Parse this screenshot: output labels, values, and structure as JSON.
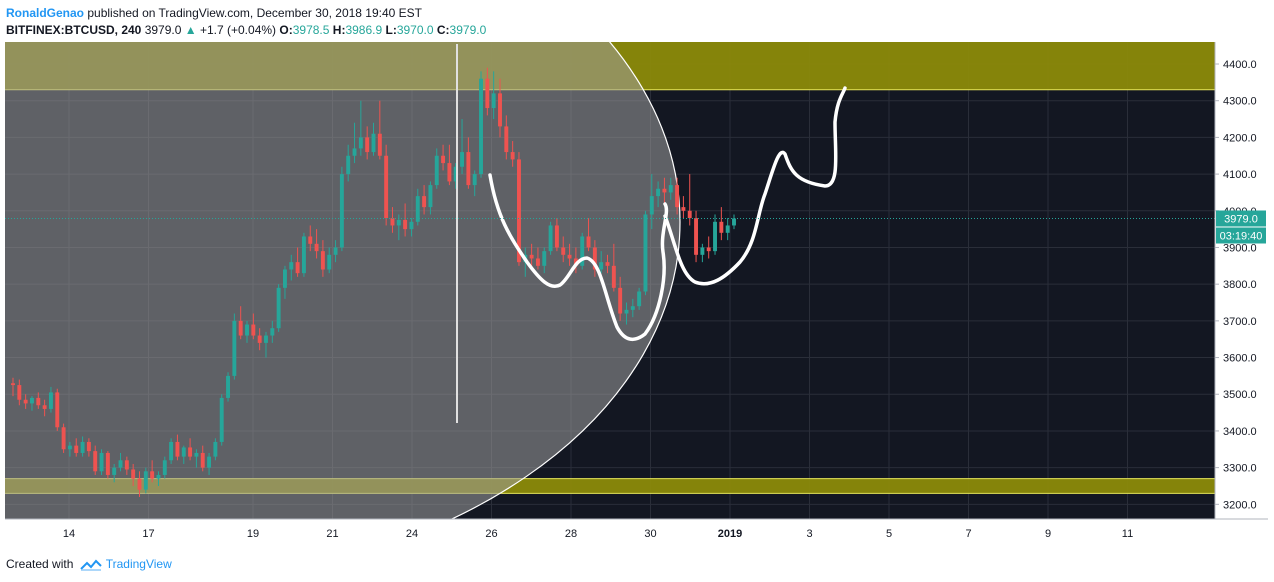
{
  "header": {
    "author": "RonaldGenao",
    "published": "published on TradingView.com, December 30, 2018 19:40 EST",
    "symbol": "BITFINEX:BTCUSD, 240",
    "last": "3979.0",
    "change": "+1.7 (+0.04%)",
    "o_label": "O:",
    "o_value": "3978.5",
    "h_label": "H:",
    "h_value": "3986.9",
    "l_label": "L:",
    "l_value": "3970.0",
    "c_label": "C:",
    "c_value": "3979.0"
  },
  "footer": {
    "created": "Created with",
    "brand": "TradingView"
  },
  "colors": {
    "background": "#131722",
    "up": "#26a69a",
    "down": "#ef5350",
    "zone": "#8b8a0a",
    "zone_border": "#e6e65a",
    "overlay": "#9e9e9e",
    "drawing": "#ffffff",
    "price_line": "#26a69a"
  },
  "chart_data": {
    "type": "candlestick",
    "y_ticks": [
      "4400.0",
      "4300.0",
      "4200.0",
      "4100.0",
      "4000.0",
      "3900.0",
      "3800.0",
      "3700.0",
      "3600.0",
      "3500.0",
      "3400.0",
      "3300.0",
      "3200.0"
    ],
    "ylim": [
      3160,
      4460
    ],
    "x_ticks": [
      "14",
      "17",
      "19",
      "21",
      "24",
      "26",
      "28",
      "30",
      "2019",
      "3",
      "5",
      "7",
      "9",
      "11"
    ],
    "last_price_label": "3979.0",
    "countdown_label": "03:19:40",
    "resistance_zone": [
      4330,
      4460
    ],
    "support_zone": [
      3230,
      3270
    ],
    "candles": [
      {
        "o": 3530,
        "h": 3545,
        "l": 3495,
        "c": 3525
      },
      {
        "o": 3525,
        "h": 3540,
        "l": 3470,
        "c": 3485
      },
      {
        "o": 3485,
        "h": 3500,
        "l": 3460,
        "c": 3475
      },
      {
        "o": 3475,
        "h": 3495,
        "l": 3455,
        "c": 3490
      },
      {
        "o": 3490,
        "h": 3505,
        "l": 3460,
        "c": 3470
      },
      {
        "o": 3470,
        "h": 3485,
        "l": 3440,
        "c": 3460
      },
      {
        "o": 3460,
        "h": 3520,
        "l": 3450,
        "c": 3505
      },
      {
        "o": 3505,
        "h": 3515,
        "l": 3400,
        "c": 3410
      },
      {
        "o": 3410,
        "h": 3420,
        "l": 3340,
        "c": 3350
      },
      {
        "o": 3350,
        "h": 3370,
        "l": 3330,
        "c": 3360
      },
      {
        "o": 3360,
        "h": 3380,
        "l": 3330,
        "c": 3340
      },
      {
        "o": 3340,
        "h": 3385,
        "l": 3330,
        "c": 3370
      },
      {
        "o": 3370,
        "h": 3380,
        "l": 3330,
        "c": 3345
      },
      {
        "o": 3345,
        "h": 3360,
        "l": 3280,
        "c": 3290
      },
      {
        "o": 3290,
        "h": 3350,
        "l": 3280,
        "c": 3340
      },
      {
        "o": 3340,
        "h": 3345,
        "l": 3270,
        "c": 3280
      },
      {
        "o": 3280,
        "h": 3310,
        "l": 3260,
        "c": 3300
      },
      {
        "o": 3300,
        "h": 3340,
        "l": 3290,
        "c": 3320
      },
      {
        "o": 3320,
        "h": 3330,
        "l": 3280,
        "c": 3295
      },
      {
        "o": 3295,
        "h": 3310,
        "l": 3250,
        "c": 3270
      },
      {
        "o": 3270,
        "h": 3290,
        "l": 3220,
        "c": 3240
      },
      {
        "o": 3240,
        "h": 3300,
        "l": 3230,
        "c": 3290
      },
      {
        "o": 3290,
        "h": 3320,
        "l": 3260,
        "c": 3270
      },
      {
        "o": 3270,
        "h": 3290,
        "l": 3250,
        "c": 3280
      },
      {
        "o": 3280,
        "h": 3330,
        "l": 3270,
        "c": 3320
      },
      {
        "o": 3320,
        "h": 3380,
        "l": 3310,
        "c": 3370
      },
      {
        "o": 3370,
        "h": 3390,
        "l": 3320,
        "c": 3330
      },
      {
        "o": 3330,
        "h": 3360,
        "l": 3310,
        "c": 3355
      },
      {
        "o": 3355,
        "h": 3380,
        "l": 3320,
        "c": 3330
      },
      {
        "o": 3330,
        "h": 3350,
        "l": 3300,
        "c": 3340
      },
      {
        "o": 3340,
        "h": 3360,
        "l": 3290,
        "c": 3300
      },
      {
        "o": 3300,
        "h": 3340,
        "l": 3280,
        "c": 3330
      },
      {
        "o": 3330,
        "h": 3380,
        "l": 3320,
        "c": 3370
      },
      {
        "o": 3370,
        "h": 3500,
        "l": 3360,
        "c": 3490
      },
      {
        "o": 3490,
        "h": 3560,
        "l": 3480,
        "c": 3550
      },
      {
        "o": 3550,
        "h": 3720,
        "l": 3540,
        "c": 3700
      },
      {
        "o": 3700,
        "h": 3740,
        "l": 3650,
        "c": 3660
      },
      {
        "o": 3660,
        "h": 3700,
        "l": 3640,
        "c": 3690
      },
      {
        "o": 3690,
        "h": 3720,
        "l": 3650,
        "c": 3660
      },
      {
        "o": 3660,
        "h": 3680,
        "l": 3620,
        "c": 3640
      },
      {
        "o": 3640,
        "h": 3670,
        "l": 3600,
        "c": 3660
      },
      {
        "o": 3660,
        "h": 3700,
        "l": 3640,
        "c": 3680
      },
      {
        "o": 3680,
        "h": 3800,
        "l": 3670,
        "c": 3790
      },
      {
        "o": 3790,
        "h": 3850,
        "l": 3760,
        "c": 3840
      },
      {
        "o": 3840,
        "h": 3880,
        "l": 3810,
        "c": 3860
      },
      {
        "o": 3860,
        "h": 3900,
        "l": 3820,
        "c": 3830
      },
      {
        "o": 3830,
        "h": 3940,
        "l": 3820,
        "c": 3930
      },
      {
        "o": 3930,
        "h": 3960,
        "l": 3890,
        "c": 3910
      },
      {
        "o": 3910,
        "h": 3950,
        "l": 3870,
        "c": 3890
      },
      {
        "o": 3890,
        "h": 3920,
        "l": 3820,
        "c": 3840
      },
      {
        "o": 3840,
        "h": 3900,
        "l": 3830,
        "c": 3880
      },
      {
        "o": 3880,
        "h": 3920,
        "l": 3860,
        "c": 3900
      },
      {
        "o": 3900,
        "h": 4120,
        "l": 3890,
        "c": 4100
      },
      {
        "o": 4100,
        "h": 4180,
        "l": 4080,
        "c": 4150
      },
      {
        "o": 4150,
        "h": 4240,
        "l": 4130,
        "c": 4170
      },
      {
        "o": 4170,
        "h": 4300,
        "l": 4150,
        "c": 4200
      },
      {
        "o": 4200,
        "h": 4230,
        "l": 4140,
        "c": 4160
      },
      {
        "o": 4160,
        "h": 4240,
        "l": 4150,
        "c": 4210
      },
      {
        "o": 4210,
        "h": 4300,
        "l": 4140,
        "c": 4150
      },
      {
        "o": 4150,
        "h": 4180,
        "l": 3960,
        "c": 3980
      },
      {
        "o": 3980,
        "h": 4010,
        "l": 3940,
        "c": 3960
      },
      {
        "o": 3960,
        "h": 3990,
        "l": 3920,
        "c": 3975
      },
      {
        "o": 3975,
        "h": 4020,
        "l": 3930,
        "c": 3950
      },
      {
        "o": 3950,
        "h": 3980,
        "l": 3930,
        "c": 3970
      },
      {
        "o": 3970,
        "h": 4060,
        "l": 3960,
        "c": 4040
      },
      {
        "o": 4040,
        "h": 4070,
        "l": 3990,
        "c": 4010
      },
      {
        "o": 4010,
        "h": 4080,
        "l": 3990,
        "c": 4070
      },
      {
        "o": 4070,
        "h": 4170,
        "l": 4060,
        "c": 4150
      },
      {
        "o": 4150,
        "h": 4180,
        "l": 4110,
        "c": 4130
      },
      {
        "o": 4130,
        "h": 4180,
        "l": 4070,
        "c": 4080
      },
      {
        "o": 4080,
        "h": 4130,
        "l": 4060,
        "c": 4120
      },
      {
        "o": 4120,
        "h": 4250,
        "l": 4100,
        "c": 4160
      },
      {
        "o": 4160,
        "h": 4200,
        "l": 4060,
        "c": 4070
      },
      {
        "o": 4070,
        "h": 4110,
        "l": 4040,
        "c": 4100
      },
      {
        "o": 4100,
        "h": 4380,
        "l": 4090,
        "c": 4360
      },
      {
        "o": 4360,
        "h": 4390,
        "l": 4260,
        "c": 4280
      },
      {
        "o": 4280,
        "h": 4380,
        "l": 4250,
        "c": 4320
      },
      {
        "o": 4320,
        "h": 4360,
        "l": 4200,
        "c": 4230
      },
      {
        "o": 4230,
        "h": 4260,
        "l": 4140,
        "c": 4160
      },
      {
        "o": 4160,
        "h": 4190,
        "l": 4120,
        "c": 4140
      },
      {
        "o": 4140,
        "h": 4160,
        "l": 3850,
        "c": 3860
      },
      {
        "o": 3860,
        "h": 3900,
        "l": 3820,
        "c": 3880
      },
      {
        "o": 3880,
        "h": 3910,
        "l": 3840,
        "c": 3870
      },
      {
        "o": 3870,
        "h": 3900,
        "l": 3840,
        "c": 3850
      },
      {
        "o": 3850,
        "h": 3900,
        "l": 3830,
        "c": 3890
      },
      {
        "o": 3890,
        "h": 3970,
        "l": 3880,
        "c": 3960
      },
      {
        "o": 3960,
        "h": 3980,
        "l": 3890,
        "c": 3900
      },
      {
        "o": 3900,
        "h": 3930,
        "l": 3860,
        "c": 3880
      },
      {
        "o": 3880,
        "h": 3910,
        "l": 3850,
        "c": 3870
      },
      {
        "o": 3870,
        "h": 3900,
        "l": 3830,
        "c": 3850
      },
      {
        "o": 3850,
        "h": 3940,
        "l": 3840,
        "c": 3930
      },
      {
        "o": 3930,
        "h": 3980,
        "l": 3890,
        "c": 3900
      },
      {
        "o": 3900,
        "h": 3920,
        "l": 3820,
        "c": 3840
      },
      {
        "o": 3840,
        "h": 3890,
        "l": 3830,
        "c": 3860
      },
      {
        "o": 3860,
        "h": 3880,
        "l": 3830,
        "c": 3850
      },
      {
        "o": 3850,
        "h": 3910,
        "l": 3780,
        "c": 3790
      },
      {
        "o": 3790,
        "h": 3820,
        "l": 3700,
        "c": 3720
      },
      {
        "o": 3720,
        "h": 3750,
        "l": 3690,
        "c": 3730
      },
      {
        "o": 3730,
        "h": 3760,
        "l": 3710,
        "c": 3740
      },
      {
        "o": 3740,
        "h": 3790,
        "l": 3730,
        "c": 3780
      },
      {
        "o": 3780,
        "h": 4000,
        "l": 3770,
        "c": 3990
      },
      {
        "o": 3990,
        "h": 4100,
        "l": 3950,
        "c": 4040
      },
      {
        "o": 4040,
        "h": 4080,
        "l": 4010,
        "c": 4060
      },
      {
        "o": 4060,
        "h": 4090,
        "l": 4020,
        "c": 4050
      },
      {
        "o": 4050,
        "h": 4090,
        "l": 4030,
        "c": 4070
      },
      {
        "o": 4070,
        "h": 4090,
        "l": 3990,
        "c": 4010
      },
      {
        "o": 4010,
        "h": 4040,
        "l": 3980,
        "c": 4000
      },
      {
        "o": 4000,
        "h": 4100,
        "l": 3960,
        "c": 3980
      },
      {
        "o": 3980,
        "h": 4000,
        "l": 3860,
        "c": 3880
      },
      {
        "o": 3880,
        "h": 3910,
        "l": 3860,
        "c": 3900
      },
      {
        "o": 3900,
        "h": 3930,
        "l": 3870,
        "c": 3890
      },
      {
        "o": 3890,
        "h": 3990,
        "l": 3880,
        "c": 3970
      },
      {
        "o": 3970,
        "h": 4010,
        "l": 3920,
        "c": 3940
      },
      {
        "o": 3940,
        "h": 3980,
        "l": 3920,
        "c": 3960
      },
      {
        "o": 3960,
        "h": 3990,
        "l": 3950,
        "c": 3979
      }
    ]
  }
}
